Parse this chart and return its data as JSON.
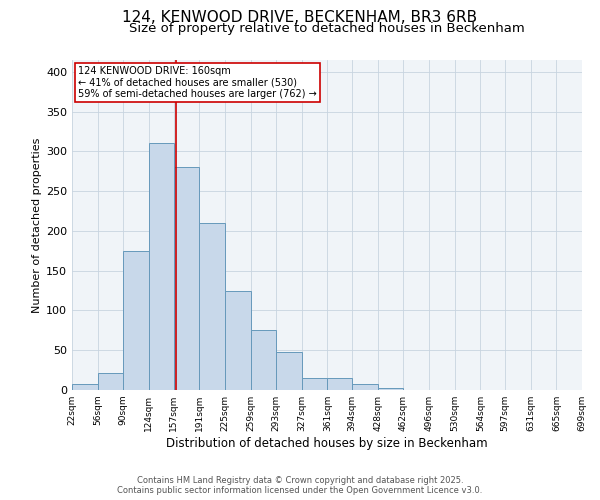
{
  "title": "124, KENWOOD DRIVE, BECKENHAM, BR3 6RB",
  "subtitle": "Size of property relative to detached houses in Beckenham",
  "xlabel": "Distribution of detached houses by size in Beckenham",
  "ylabel": "Number of detached properties",
  "bin_labels": [
    "22sqm",
    "56sqm",
    "90sqm",
    "124sqm",
    "157sqm",
    "191sqm",
    "225sqm",
    "259sqm",
    "293sqm",
    "327sqm",
    "361sqm",
    "394sqm",
    "428sqm",
    "462sqm",
    "496sqm",
    "530sqm",
    "564sqm",
    "597sqm",
    "631sqm",
    "665sqm",
    "699sqm"
  ],
  "bin_edges": [
    22,
    56,
    90,
    124,
    157,
    191,
    225,
    259,
    293,
    327,
    361,
    394,
    428,
    462,
    496,
    530,
    564,
    597,
    631,
    665,
    699
  ],
  "bar_heights": [
    7,
    21,
    175,
    310,
    280,
    210,
    125,
    76,
    48,
    15,
    15,
    8,
    2,
    0,
    0,
    0,
    0,
    0,
    0,
    0
  ],
  "bar_color": "#c8d8ea",
  "bar_edgecolor": "#6699bb",
  "vline_x": 160,
  "vline_color": "#cc0000",
  "annotation_text": "124 KENWOOD DRIVE: 160sqm\n← 41% of detached houses are smaller (530)\n59% of semi-detached houses are larger (762) →",
  "annotation_box_edgecolor": "#cc0000",
  "grid_color": "#c8d4e0",
  "background_color": "#f0f4f8",
  "ylim": [
    0,
    415
  ],
  "yticks": [
    0,
    50,
    100,
    150,
    200,
    250,
    300,
    350,
    400
  ],
  "footer": "Contains HM Land Registry data © Crown copyright and database right 2025.\nContains public sector information licensed under the Open Government Licence v3.0.",
  "title_fontsize": 11,
  "subtitle_fontsize": 9.5,
  "xlabel_fontsize": 8.5,
  "ylabel_fontsize": 8,
  "tick_fontsize": 6.5,
  "ytick_fontsize": 8,
  "footer_fontsize": 6,
  "annot_fontsize": 7
}
